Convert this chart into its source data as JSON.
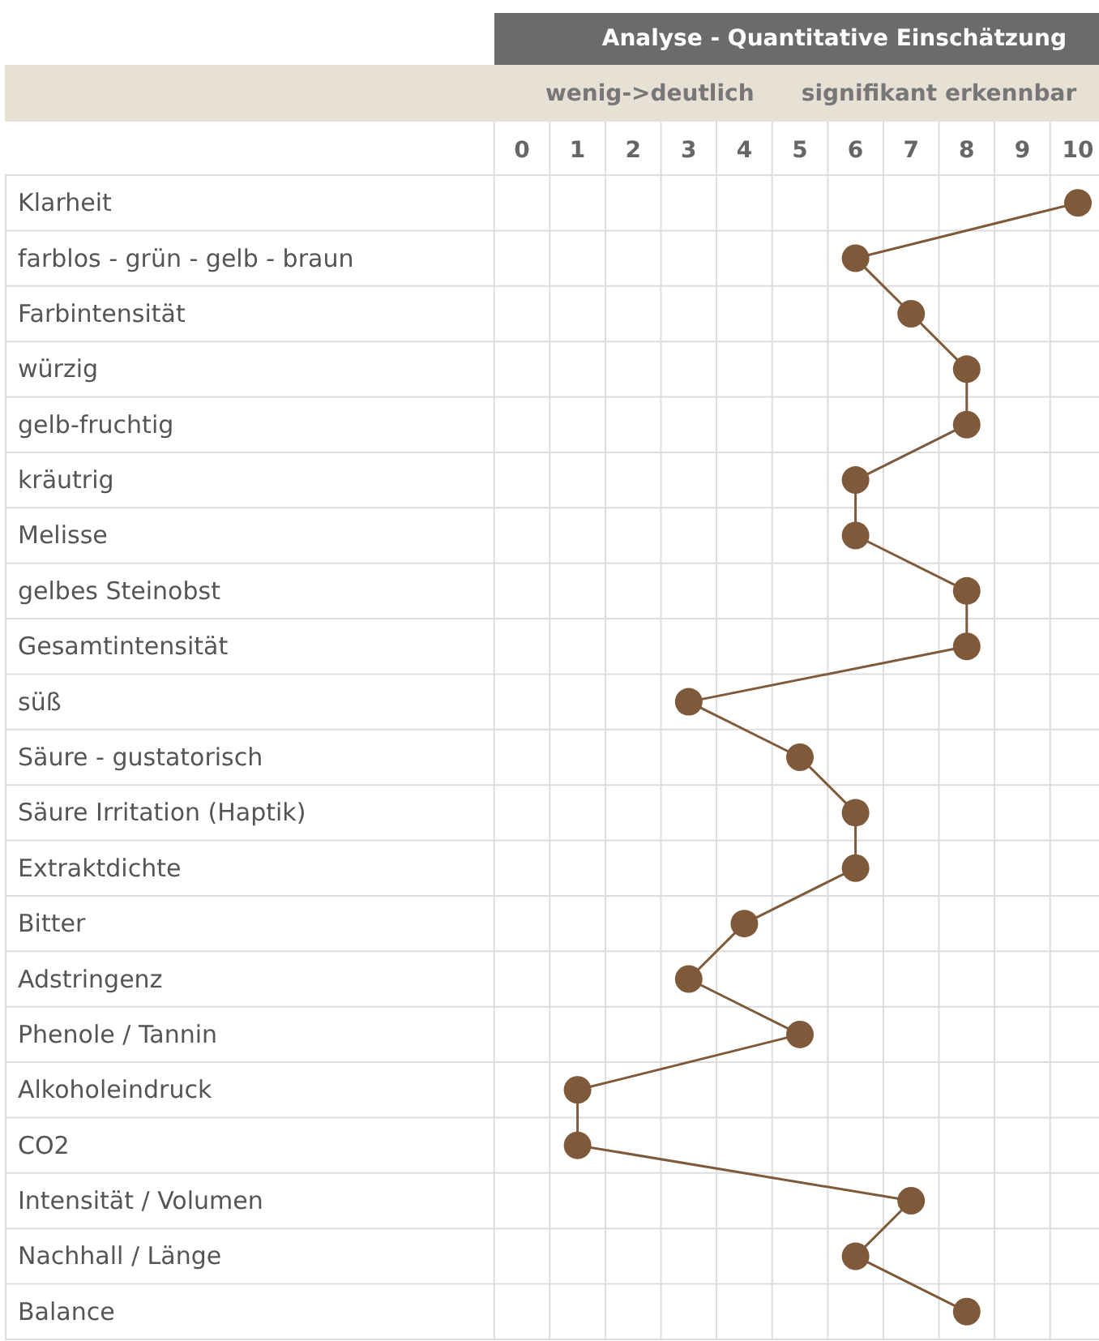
{
  "chart_data": {
    "type": "line",
    "orientation": "horizontal",
    "title": "Analyse - Quantitative Einschätzung",
    "annotations": [
      "wenig->deutlich",
      "signifikant erkennbar"
    ],
    "categories": [
      "Klarheit",
      "farblos  - grün - gelb - braun",
      "Farbintensität",
      "würzig",
      "gelb-fruchtig",
      "kräutrig",
      "Melisse",
      "gelbes Steinobst",
      "Gesamtintensität",
      "süß",
      "Säure - gustatorisch",
      "Säure Irritation  (Haptik)",
      "Extraktdichte",
      "Bitter",
      "Adstringenz",
      "Phenole / Tannin",
      "Alkoholeindruck",
      "CO2",
      "Intensität / Volumen",
      "Nachhall / Länge",
      "Balance"
    ],
    "series": [
      {
        "color": "#7f5a3a",
        "values": [
          10,
          6,
          7,
          8,
          8,
          6,
          6,
          8,
          8,
          3,
          5,
          6,
          6,
          4,
          3,
          5,
          1,
          1,
          7,
          6,
          8
        ]
      }
    ],
    "xlim": [
      0,
      10
    ],
    "xticks": [
      0,
      1,
      2,
      3,
      4,
      5,
      6,
      7,
      8,
      9,
      10
    ],
    "grid": true,
    "marker": "circle"
  }
}
